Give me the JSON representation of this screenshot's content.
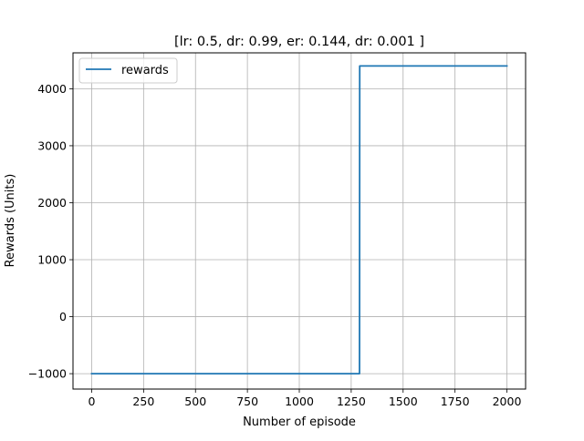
{
  "chart_data": {
    "type": "line",
    "title": "[lr: 0.5, dr: 0.99, er: 0.144, dr: 0.001 ]",
    "xlabel": "Number of episode",
    "ylabel": "Rewards (Units)",
    "xlim": [
      -90,
      2090
    ],
    "ylim": [
      -1270,
      4630
    ],
    "xticks": [
      0,
      250,
      500,
      750,
      1000,
      1250,
      1500,
      1750,
      2000
    ],
    "xtick_labels": [
      "0",
      "250",
      "500",
      "750",
      "1000",
      "1250",
      "1500",
      "1750",
      "2000"
    ],
    "yticks": [
      -1000,
      0,
      1000,
      2000,
      3000,
      4000
    ],
    "ytick_labels": [
      "−1000",
      "0",
      "1000",
      "2000",
      "3000",
      "4000"
    ],
    "grid": true,
    "legend_position": "top-left",
    "series": [
      {
        "name": "rewards",
        "color": "#1f77b4",
        "x": [
          0,
          1290,
          1291,
          2000
        ],
        "y": [
          -1000,
          -1000,
          4400,
          4400
        ]
      }
    ]
  }
}
